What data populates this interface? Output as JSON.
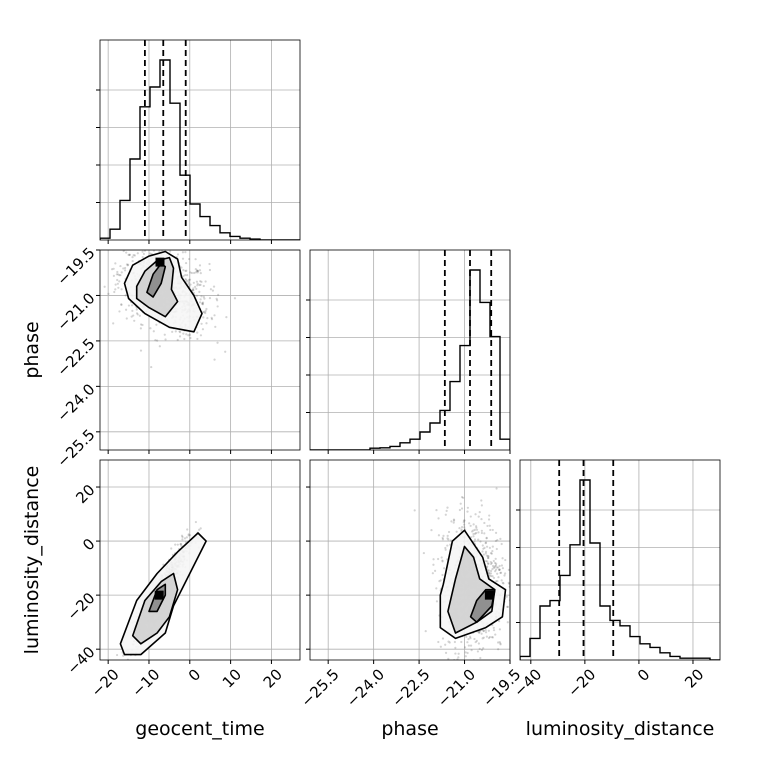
{
  "chart_data": {
    "type": "corner",
    "parameters": [
      "geocent_time",
      "phase",
      "luminosity_distance"
    ],
    "xlabels": [
      "geocent_time",
      "phase",
      "luminosity_distance"
    ],
    "ylabels": [
      "phase",
      "luminosity_distance"
    ],
    "ranges": {
      "geocent_time": [
        -22,
        27
      ],
      "phase": [
        -26.1,
        -19.5
      ],
      "luminosity_distance": [
        -44,
        30
      ]
    },
    "ticks": {
      "geocent_time": {
        "values": [
          -20,
          -10,
          0,
          10,
          20
        ],
        "labels": [
          "−20",
          "−10",
          "0",
          "10",
          "20"
        ]
      },
      "phase": {
        "values": [
          -25.5,
          -24.0,
          -22.5,
          -21.0,
          -19.5
        ],
        "labels": [
          "−25.5",
          "−24.0",
          "−22.5",
          "−21.0",
          "−19.5"
        ]
      },
      "luminosity_distance": {
        "values": [
          -40,
          -20,
          0,
          20
        ],
        "labels": [
          "−40",
          "−20",
          "0",
          "20"
        ]
      }
    },
    "grid": true,
    "histograms": [
      {
        "parameter": "geocent_time",
        "bin_edges": [
          -22,
          -19.55,
          -17.1,
          -14.65,
          -12.2,
          -9.75,
          -7.3,
          -4.85,
          -2.4,
          0.05,
          2.5,
          4.95,
          7.4,
          9.85,
          12.3,
          14.75,
          17.2,
          19.65,
          22.1,
          24.55,
          27
        ],
        "counts": [
          0.01,
          0.06,
          0.22,
          0.45,
          0.74,
          0.85,
          1.0,
          0.76,
          0.36,
          0.2,
          0.13,
          0.08,
          0.04,
          0.02,
          0.01,
          0.005,
          0,
          0,
          0,
          0
        ],
        "quantiles": [
          -11,
          -6.5,
          -1
        ]
      },
      {
        "parameter": "phase",
        "bin_edges": [
          -26.1,
          -25.77,
          -25.44,
          -25.11,
          -24.78,
          -24.45,
          -24.12,
          -23.79,
          -23.46,
          -23.13,
          -22.8,
          -22.47,
          -22.14,
          -21.81,
          -21.48,
          -21.15,
          -20.82,
          -20.49,
          -20.16,
          -19.83,
          -19.5
        ],
        "counts": [
          0,
          0,
          0,
          0,
          0,
          0,
          0.01,
          0.012,
          0.02,
          0.04,
          0.06,
          0.1,
          0.15,
          0.22,
          0.38,
          0.58,
          1.0,
          0.82,
          0.63,
          0.06
        ],
        "quantiles": [
          -21.65,
          -20.82,
          -20.12
        ]
      },
      {
        "parameter": "luminosity_distance",
        "bin_edges": [
          -44,
          -40.3,
          -36.6,
          -32.9,
          -29.2,
          -25.5,
          -21.8,
          -18.1,
          -14.4,
          -10.7,
          -7,
          -3.3,
          0.4,
          4.1,
          7.8,
          11.5,
          15.2,
          18.9,
          22.6,
          26.3,
          30
        ],
        "counts": [
          0.02,
          0.12,
          0.3,
          0.33,
          0.47,
          0.64,
          1.0,
          0.65,
          0.3,
          0.22,
          0.19,
          0.13,
          0.09,
          0.07,
          0.04,
          0.02,
          0.01,
          0.01,
          0.01,
          0
        ],
        "quantiles": [
          -29.5,
          -20.5,
          -9.5
        ]
      }
    ],
    "scatter_2d": [
      {
        "x": "geocent_time",
        "y": "phase",
        "peak": [
          -7.3,
          -19.9
        ],
        "contours": [
          [
            [
              -16,
              -20.6
            ],
            [
              -14,
              -20
            ],
            [
              -10,
              -19.7
            ],
            [
              -6,
              -19.55
            ],
            [
              -3,
              -19.8
            ],
            [
              -2,
              -20.4
            ],
            [
              1,
              -21
            ],
            [
              3,
              -21.6
            ],
            [
              1,
              -22.2
            ],
            [
              -5,
              -22.05
            ],
            [
              -11,
              -21.6
            ],
            [
              -15,
              -21.1
            ]
          ],
          [
            [
              -13,
              -20.7
            ],
            [
              -11,
              -20.2
            ],
            [
              -8,
              -19.85
            ],
            [
              -5,
              -19.75
            ],
            [
              -4,
              -20.1
            ],
            [
              -4.5,
              -20.8
            ],
            [
              -3,
              -21.2
            ],
            [
              -6,
              -21.7
            ],
            [
              -10,
              -21.4
            ],
            [
              -13,
              -21.1
            ]
          ],
          [
            [
              -10.5,
              -20.9
            ],
            [
              -9,
              -20.3
            ],
            [
              -7,
              -19.95
            ],
            [
              -6,
              -20.05
            ],
            [
              -7,
              -20.6
            ],
            [
              -9,
              -21.05
            ]
          ]
        ]
      },
      {
        "x": "geocent_time",
        "y": "luminosity_distance",
        "peak": [
          -7.5,
          -20
        ],
        "contours": [
          [
            [
              -17,
              -38
            ],
            [
              -13,
              -22
            ],
            [
              -8,
              -12
            ],
            [
              -3,
              -4
            ],
            [
              2,
              3
            ],
            [
              4,
              0
            ],
            [
              0,
              -12
            ],
            [
              -4,
              -24
            ],
            [
              -6,
              -34
            ],
            [
              -12,
              -42
            ],
            [
              -16,
              -42
            ]
          ],
          [
            [
              -14,
              -35
            ],
            [
              -11,
              -22
            ],
            [
              -7,
              -15
            ],
            [
              -4,
              -12
            ],
            [
              -3,
              -18
            ],
            [
              -5,
              -28
            ],
            [
              -8,
              -34
            ],
            [
              -12,
              -38
            ]
          ],
          [
            [
              -10,
              -26
            ],
            [
              -8,
              -18
            ],
            [
              -6,
              -16
            ],
            [
              -6,
              -20
            ],
            [
              -8,
              -26
            ]
          ]
        ]
      },
      {
        "x": "phase",
        "y": "luminosity_distance",
        "peak": [
          -20.18,
          -20
        ],
        "contours": [
          [
            [
              -21.7,
              -16
            ],
            [
              -21.4,
              0
            ],
            [
              -21,
              4
            ],
            [
              -20.4,
              -6
            ],
            [
              -20.2,
              -14
            ],
            [
              -19.65,
              -18
            ],
            [
              -19.75,
              -28
            ],
            [
              -20.3,
              -32
            ],
            [
              -21.3,
              -36
            ],
            [
              -21.8,
              -32
            ],
            [
              -21.8,
              -20
            ]
          ],
          [
            [
              -21.3,
              -14
            ],
            [
              -21,
              -2
            ],
            [
              -20.7,
              -6
            ],
            [
              -20.5,
              -14
            ],
            [
              -20,
              -18
            ],
            [
              -20.1,
              -26
            ],
            [
              -20.6,
              -30
            ],
            [
              -21.3,
              -34
            ],
            [
              -21.55,
              -26
            ]
          ],
          [
            [
              -20.8,
              -28
            ],
            [
              -20.6,
              -22
            ],
            [
              -20.3,
              -18
            ],
            [
              -20,
              -18
            ],
            [
              -20.1,
              -24
            ],
            [
              -20.6,
              -30
            ]
          ]
        ]
      }
    ]
  }
}
